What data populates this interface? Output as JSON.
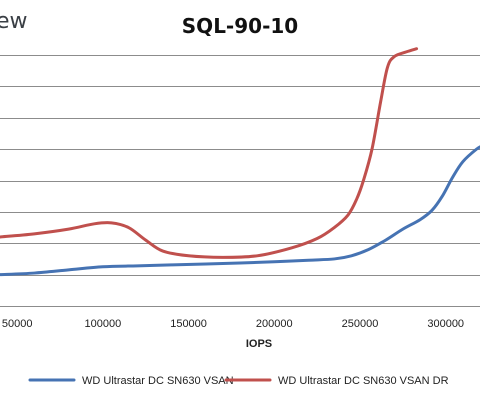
{
  "logo": {
    "text": "ew"
  },
  "colors": {
    "series_1": "#4673b3",
    "series_2": "#c0504d",
    "gridline": "#8c8c8c",
    "background": "#ffffff"
  },
  "chart_data": {
    "type": "line",
    "title": "SQL-90-10",
    "xlabel": "IOPS",
    "ylabel": "",
    "xlim": [
      40000,
      320000
    ],
    "ylim": [
      0,
      8
    ],
    "x_ticks": [
      50000,
      100000,
      150000,
      200000,
      250000,
      300000
    ],
    "x_tick_labels": [
      "50000",
      "100000",
      "150000",
      "200000",
      "250000",
      "300000"
    ],
    "gridlines": [
      1,
      2,
      3,
      4,
      5,
      6,
      7,
      8
    ],
    "grid": true,
    "legend_position": "bottom",
    "series": [
      {
        "name": "WD Ultrastar DC SN630 VSAN",
        "color": "#4673b3",
        "points": [
          [
            40000,
            1.0
          ],
          [
            60000,
            1.05
          ],
          [
            80000,
            1.15
          ],
          [
            100000,
            1.25
          ],
          [
            120000,
            1.28
          ],
          [
            140000,
            1.31
          ],
          [
            160000,
            1.34
          ],
          [
            180000,
            1.37
          ],
          [
            200000,
            1.41
          ],
          [
            220000,
            1.46
          ],
          [
            235000,
            1.5
          ],
          [
            245000,
            1.6
          ],
          [
            255000,
            1.8
          ],
          [
            265000,
            2.1
          ],
          [
            275000,
            2.45
          ],
          [
            285000,
            2.75
          ],
          [
            292000,
            3.05
          ],
          [
            298000,
            3.5
          ],
          [
            304000,
            4.1
          ],
          [
            310000,
            4.6
          ],
          [
            318000,
            5.0
          ],
          [
            322000,
            5.12
          ]
        ]
      },
      {
        "name": "WD Ultrastar DC SN630 VSAN DR",
        "color": "#c0504d",
        "points": [
          [
            40000,
            2.2
          ],
          [
            60000,
            2.3
          ],
          [
            80000,
            2.45
          ],
          [
            95000,
            2.62
          ],
          [
            105000,
            2.65
          ],
          [
            115000,
            2.5
          ],
          [
            125000,
            2.1
          ],
          [
            135000,
            1.75
          ],
          [
            150000,
            1.6
          ],
          [
            170000,
            1.55
          ],
          [
            190000,
            1.6
          ],
          [
            210000,
            1.85
          ],
          [
            225000,
            2.15
          ],
          [
            235000,
            2.5
          ],
          [
            243000,
            2.9
          ],
          [
            248000,
            3.4
          ],
          [
            252000,
            4.0
          ],
          [
            257000,
            5.0
          ],
          [
            262000,
            6.5
          ],
          [
            266000,
            7.6
          ],
          [
            270000,
            7.95
          ],
          [
            277000,
            8.1
          ],
          [
            283000,
            8.2
          ]
        ]
      }
    ]
  }
}
